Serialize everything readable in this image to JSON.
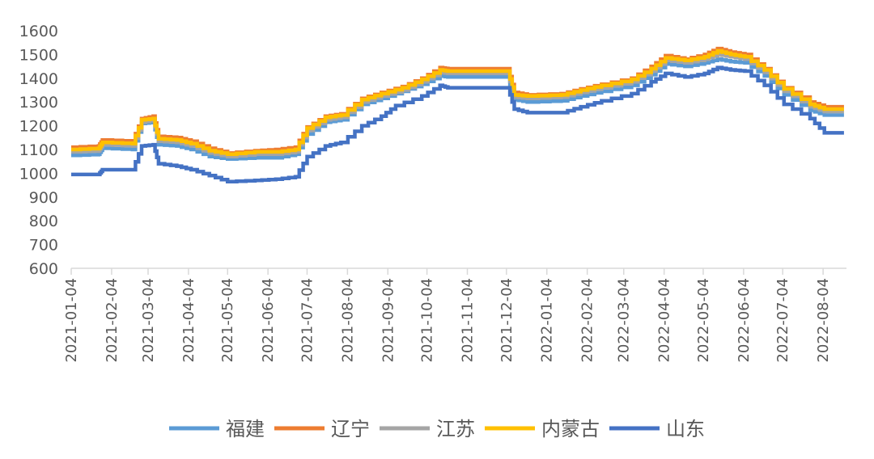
{
  "chart_data": {
    "type": "line",
    "title": "",
    "xlabel": "",
    "ylabel": "",
    "ylim": [
      600,
      1600
    ],
    "yticks": [
      600,
      700,
      800,
      900,
      1000,
      1100,
      1200,
      1300,
      1400,
      1500,
      1600
    ],
    "grid": false,
    "legend_position": "bottom",
    "x_ticks": [
      "2021-01-04",
      "2021-02-04",
      "2021-03-04",
      "2021-04-04",
      "2021-05-04",
      "2021-06-04",
      "2021-07-04",
      "2021-08-04",
      "2021-09-04",
      "2021-10-04",
      "2021-11-04",
      "2021-12-04",
      "2022-01-04",
      "2022-02-04",
      "2022-03-04",
      "2022-04-04",
      "2022-05-04",
      "2022-06-04",
      "2022-07-04",
      "2022-08-04"
    ],
    "x_end": "2022-08-20",
    "series": [
      {
        "name": "福建",
        "color": "#5B9BD5",
        "points": [
          [
            "2021-01-04",
            1075
          ],
          [
            "2021-01-25",
            1080
          ],
          [
            "2021-01-28",
            1105
          ],
          [
            "2021-02-20",
            1100
          ],
          [
            "2021-02-27",
            1210
          ],
          [
            "2021-03-08",
            1215
          ],
          [
            "2021-03-12",
            1120
          ],
          [
            "2021-03-26",
            1115
          ],
          [
            "2021-04-06",
            1100
          ],
          [
            "2021-04-20",
            1070
          ],
          [
            "2021-05-04",
            1060
          ],
          [
            "2021-05-25",
            1065
          ],
          [
            "2021-06-10",
            1065
          ],
          [
            "2021-06-25",
            1080
          ],
          [
            "2021-07-04",
            1165
          ],
          [
            "2021-07-18",
            1215
          ],
          [
            "2021-07-30",
            1225
          ],
          [
            "2021-08-15",
            1290
          ],
          [
            "2021-08-30",
            1315
          ],
          [
            "2021-09-15",
            1345
          ],
          [
            "2021-09-30",
            1375
          ],
          [
            "2021-10-14",
            1410
          ],
          [
            "2021-10-20",
            1405
          ],
          [
            "2021-12-05",
            1405
          ],
          [
            "2021-12-10",
            1310
          ],
          [
            "2021-12-20",
            1300
          ],
          [
            "2022-01-15",
            1305
          ],
          [
            "2022-01-30",
            1325
          ],
          [
            "2022-02-15",
            1345
          ],
          [
            "2022-03-10",
            1370
          ],
          [
            "2022-03-25",
            1415
          ],
          [
            "2022-04-05",
            1460
          ],
          [
            "2022-04-20",
            1450
          ],
          [
            "2022-05-05",
            1465
          ],
          [
            "2022-05-15",
            1480
          ],
          [
            "2022-05-25",
            1470
          ],
          [
            "2022-06-05",
            1465
          ],
          [
            "2022-06-20",
            1410
          ],
          [
            "2022-07-05",
            1330
          ],
          [
            "2022-07-25",
            1265
          ],
          [
            "2022-08-05",
            1245
          ],
          [
            "2022-08-20",
            1245
          ]
        ]
      },
      {
        "name": "辽宁",
        "color": "#ED7D31",
        "points": [
          [
            "2021-01-04",
            1110
          ],
          [
            "2021-01-25",
            1115
          ],
          [
            "2021-01-28",
            1140
          ],
          [
            "2021-02-20",
            1135
          ],
          [
            "2021-02-27",
            1230
          ],
          [
            "2021-03-08",
            1240
          ],
          [
            "2021-03-12",
            1155
          ],
          [
            "2021-03-26",
            1150
          ],
          [
            "2021-04-06",
            1135
          ],
          [
            "2021-04-20",
            1105
          ],
          [
            "2021-05-04",
            1085
          ],
          [
            "2021-05-25",
            1095
          ],
          [
            "2021-06-10",
            1100
          ],
          [
            "2021-06-25",
            1110
          ],
          [
            "2021-07-04",
            1195
          ],
          [
            "2021-07-18",
            1240
          ],
          [
            "2021-07-30",
            1250
          ],
          [
            "2021-08-15",
            1315
          ],
          [
            "2021-08-30",
            1340
          ],
          [
            "2021-09-15",
            1365
          ],
          [
            "2021-09-30",
            1400
          ],
          [
            "2021-10-14",
            1445
          ],
          [
            "2021-10-20",
            1440
          ],
          [
            "2021-12-05",
            1440
          ],
          [
            "2021-12-10",
            1340
          ],
          [
            "2021-12-20",
            1330
          ],
          [
            "2022-01-15",
            1335
          ],
          [
            "2022-01-30",
            1355
          ],
          [
            "2022-02-15",
            1375
          ],
          [
            "2022-03-10",
            1400
          ],
          [
            "2022-03-25",
            1450
          ],
          [
            "2022-04-05",
            1495
          ],
          [
            "2022-04-20",
            1480
          ],
          [
            "2022-05-05",
            1500
          ],
          [
            "2022-05-15",
            1525
          ],
          [
            "2022-05-25",
            1510
          ],
          [
            "2022-06-05",
            1500
          ],
          [
            "2022-06-20",
            1440
          ],
          [
            "2022-07-05",
            1360
          ],
          [
            "2022-07-25",
            1300
          ],
          [
            "2022-08-05",
            1280
          ],
          [
            "2022-08-20",
            1280
          ]
        ]
      },
      {
        "name": "江苏",
        "color": "#A5A5A5",
        "points": [
          [
            "2021-01-04",
            1090
          ],
          [
            "2021-01-25",
            1095
          ],
          [
            "2021-01-28",
            1120
          ],
          [
            "2021-02-20",
            1115
          ],
          [
            "2021-02-27",
            1215
          ],
          [
            "2021-03-08",
            1225
          ],
          [
            "2021-03-12",
            1135
          ],
          [
            "2021-03-26",
            1130
          ],
          [
            "2021-04-06",
            1115
          ],
          [
            "2021-04-20",
            1085
          ],
          [
            "2021-05-04",
            1070
          ],
          [
            "2021-05-25",
            1080
          ],
          [
            "2021-06-10",
            1080
          ],
          [
            "2021-06-25",
            1090
          ],
          [
            "2021-07-04",
            1180
          ],
          [
            "2021-07-18",
            1225
          ],
          [
            "2021-07-30",
            1235
          ],
          [
            "2021-08-15",
            1300
          ],
          [
            "2021-08-30",
            1325
          ],
          [
            "2021-09-15",
            1350
          ],
          [
            "2021-09-30",
            1385
          ],
          [
            "2021-10-14",
            1425
          ],
          [
            "2021-10-20",
            1420
          ],
          [
            "2021-12-05",
            1420
          ],
          [
            "2021-12-10",
            1320
          ],
          [
            "2021-12-20",
            1315
          ],
          [
            "2022-01-15",
            1320
          ],
          [
            "2022-01-30",
            1340
          ],
          [
            "2022-02-15",
            1360
          ],
          [
            "2022-03-10",
            1385
          ],
          [
            "2022-03-25",
            1430
          ],
          [
            "2022-04-05",
            1475
          ],
          [
            "2022-04-20",
            1465
          ],
          [
            "2022-05-05",
            1480
          ],
          [
            "2022-05-15",
            1500
          ],
          [
            "2022-05-25",
            1490
          ],
          [
            "2022-06-05",
            1480
          ],
          [
            "2022-06-20",
            1425
          ],
          [
            "2022-07-05",
            1345
          ],
          [
            "2022-07-25",
            1280
          ],
          [
            "2022-08-05",
            1260
          ],
          [
            "2022-08-20",
            1260
          ]
        ]
      },
      {
        "name": "内蒙古",
        "color": "#FFC000",
        "points": [
          [
            "2021-01-04",
            1100
          ],
          [
            "2021-01-25",
            1105
          ],
          [
            "2021-01-28",
            1130
          ],
          [
            "2021-02-20",
            1125
          ],
          [
            "2021-02-27",
            1225
          ],
          [
            "2021-03-08",
            1230
          ],
          [
            "2021-03-12",
            1145
          ],
          [
            "2021-03-26",
            1140
          ],
          [
            "2021-04-06",
            1125
          ],
          [
            "2021-04-20",
            1095
          ],
          [
            "2021-05-04",
            1080
          ],
          [
            "2021-05-25",
            1090
          ],
          [
            "2021-06-10",
            1090
          ],
          [
            "2021-06-25",
            1100
          ],
          [
            "2021-07-04",
            1190
          ],
          [
            "2021-07-18",
            1235
          ],
          [
            "2021-07-30",
            1245
          ],
          [
            "2021-08-15",
            1310
          ],
          [
            "2021-08-30",
            1335
          ],
          [
            "2021-09-15",
            1360
          ],
          [
            "2021-09-30",
            1395
          ],
          [
            "2021-10-14",
            1435
          ],
          [
            "2021-10-20",
            1430
          ],
          [
            "2021-12-05",
            1430
          ],
          [
            "2021-12-10",
            1330
          ],
          [
            "2021-12-20",
            1325
          ],
          [
            "2022-01-15",
            1330
          ],
          [
            "2022-01-30",
            1350
          ],
          [
            "2022-02-15",
            1370
          ],
          [
            "2022-03-10",
            1395
          ],
          [
            "2022-03-25",
            1440
          ],
          [
            "2022-04-05",
            1485
          ],
          [
            "2022-04-20",
            1475
          ],
          [
            "2022-05-05",
            1490
          ],
          [
            "2022-05-15",
            1515
          ],
          [
            "2022-05-25",
            1500
          ],
          [
            "2022-06-05",
            1490
          ],
          [
            "2022-06-20",
            1435
          ],
          [
            "2022-07-05",
            1355
          ],
          [
            "2022-07-25",
            1290
          ],
          [
            "2022-08-05",
            1270
          ],
          [
            "2022-08-20",
            1270
          ]
        ]
      },
      {
        "name": "山东",
        "color": "#4472C4",
        "points": [
          [
            "2021-01-04",
            995
          ],
          [
            "2021-01-25",
            995
          ],
          [
            "2021-01-28",
            1015
          ],
          [
            "2021-02-20",
            1015
          ],
          [
            "2021-02-27",
            1115
          ],
          [
            "2021-03-08",
            1120
          ],
          [
            "2021-03-12",
            1040
          ],
          [
            "2021-03-26",
            1030
          ],
          [
            "2021-04-06",
            1015
          ],
          [
            "2021-04-20",
            990
          ],
          [
            "2021-05-04",
            965
          ],
          [
            "2021-05-25",
            970
          ],
          [
            "2021-06-10",
            975
          ],
          [
            "2021-06-25",
            985
          ],
          [
            "2021-07-04",
            1070
          ],
          [
            "2021-07-18",
            1115
          ],
          [
            "2021-07-30",
            1130
          ],
          [
            "2021-08-15",
            1200
          ],
          [
            "2021-08-30",
            1240
          ],
          [
            "2021-09-10",
            1285
          ],
          [
            "2021-09-30",
            1325
          ],
          [
            "2021-10-14",
            1370
          ],
          [
            "2021-10-20",
            1360
          ],
          [
            "2021-12-05",
            1360
          ],
          [
            "2021-12-10",
            1270
          ],
          [
            "2021-12-20",
            1255
          ],
          [
            "2022-01-15",
            1255
          ],
          [
            "2022-01-30",
            1280
          ],
          [
            "2022-02-15",
            1305
          ],
          [
            "2022-03-10",
            1335
          ],
          [
            "2022-03-25",
            1385
          ],
          [
            "2022-04-05",
            1420
          ],
          [
            "2022-04-20",
            1405
          ],
          [
            "2022-05-05",
            1420
          ],
          [
            "2022-05-15",
            1445
          ],
          [
            "2022-05-25",
            1435
          ],
          [
            "2022-06-05",
            1430
          ],
          [
            "2022-06-20",
            1370
          ],
          [
            "2022-07-05",
            1290
          ],
          [
            "2022-07-25",
            1230
          ],
          [
            "2022-08-05",
            1170
          ],
          [
            "2022-08-20",
            1170
          ]
        ]
      }
    ]
  }
}
